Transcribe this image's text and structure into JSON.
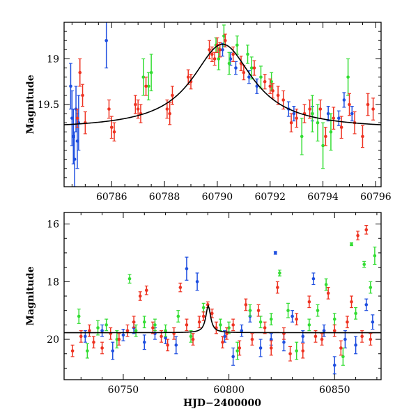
{
  "chart_data": [
    {
      "type": "scatter",
      "title": "",
      "xlabel": "",
      "ylabel": "Magnitude",
      "xlim": [
        60784.2,
        60796.2
      ],
      "ylim": [
        20.4,
        18.6
      ],
      "y_inverted": true,
      "grid": false,
      "x_ticks": [
        60786,
        60788,
        60790,
        60792,
        60794,
        60796
      ],
      "x_tick_labels": [
        "60786",
        "60788",
        "60790",
        "60792",
        "60794",
        "60796"
      ],
      "y_ticks": [
        19,
        19.5
      ],
      "y_tick_labels": [
        "19",
        "19.5"
      ],
      "model_curve": {
        "color": "#000000",
        "peak_x": 60790.2,
        "peak_mag": 18.84,
        "baseline_mag": 19.77,
        "tE_days": 1.4
      },
      "series": [
        {
          "color": "#1f4fe0",
          "x": [
            60784.45,
            60784.5,
            60784.55,
            60784.6,
            60784.65,
            60784.7,
            60784.75,
            60785.8,
            60790.2,
            60790.5,
            60790.7,
            60791.2,
            60791.5,
            60792.7,
            60792.9,
            60793.6,
            60794.2,
            60794.6,
            60794.8,
            60795.1
          ],
          "y": [
            19.3,
            19.65,
            19.85,
            20.1,
            19.55,
            19.9,
            19.7,
            18.8,
            18.9,
            19.0,
            19.1,
            19.2,
            19.3,
            19.55,
            19.6,
            19.6,
            19.6,
            19.65,
            19.45,
            19.6
          ],
          "err": [
            0.25,
            0.3,
            0.3,
            0.3,
            0.25,
            0.3,
            0.3,
            0.3,
            0.07,
            0.07,
            0.07,
            0.07,
            0.08,
            0.08,
            0.08,
            0.08,
            0.08,
            0.08,
            0.08,
            0.08
          ]
        },
        {
          "color": "#33dd33",
          "x": [
            60787.2,
            60787.4,
            60787.5,
            60789.95,
            60790.05,
            60790.25,
            60790.45,
            60790.75,
            60791.15,
            60791.3,
            60791.65,
            60792.05,
            60793.2,
            60793.6,
            60793.8,
            60794.0,
            60794.3,
            60794.95
          ],
          "y": [
            19.2,
            19.3,
            19.15,
            18.85,
            19.0,
            18.75,
            19.05,
            18.85,
            18.95,
            19.1,
            19.2,
            19.25,
            19.85,
            19.6,
            19.7,
            19.95,
            19.8,
            19.2
          ],
          "err": [
            0.2,
            0.15,
            0.2,
            0.08,
            0.12,
            0.12,
            0.12,
            0.1,
            0.1,
            0.12,
            0.12,
            0.1,
            0.2,
            0.2,
            0.2,
            0.25,
            0.2,
            0.2
          ]
        },
        {
          "color": "#ee3322",
          "x": [
            60784.7,
            60784.8,
            60784.9,
            60785.0,
            60785.9,
            60786.0,
            60786.1,
            60786.9,
            60787.0,
            60787.1,
            60787.3,
            60788.1,
            60788.2,
            60788.3,
            60788.9,
            60789.0,
            60789.7,
            60789.8,
            60789.9,
            60790.0,
            60790.1,
            60790.3,
            60790.6,
            60790.9,
            60791.0,
            60791.4,
            60791.8,
            60792.0,
            60792.1,
            60792.3,
            60792.5,
            60792.8,
            60793.0,
            60793.3,
            60793.5,
            60793.9,
            60794.1,
            60794.4,
            60794.7,
            60795.0,
            60795.2,
            60795.5,
            60795.7,
            60795.9
          ],
          "y": [
            19.65,
            19.15,
            19.4,
            19.7,
            19.55,
            19.75,
            19.8,
            19.5,
            19.55,
            19.6,
            19.3,
            19.55,
            19.6,
            19.4,
            19.2,
            19.25,
            18.9,
            18.95,
            19.0,
            18.85,
            18.9,
            18.8,
            18.95,
            19.05,
            19.15,
            19.1,
            19.25,
            19.3,
            19.35,
            19.4,
            19.45,
            19.7,
            19.65,
            19.6,
            19.55,
            19.55,
            19.85,
            19.65,
            19.75,
            19.5,
            19.7,
            19.85,
            19.5,
            19.55
          ],
          "err": [
            0.1,
            0.15,
            0.12,
            0.12,
            0.1,
            0.12,
            0.1,
            0.1,
            0.1,
            0.1,
            0.1,
            0.1,
            0.12,
            0.1,
            0.08,
            0.08,
            0.1,
            0.08,
            0.07,
            0.08,
            0.08,
            0.07,
            0.08,
            0.08,
            0.08,
            0.08,
            0.08,
            0.08,
            0.08,
            0.1,
            0.1,
            0.1,
            0.1,
            0.1,
            0.1,
            0.1,
            0.1,
            0.12,
            0.12,
            0.12,
            0.12,
            0.12,
            0.12,
            0.12
          ]
        }
      ]
    },
    {
      "type": "scatter",
      "title": "",
      "xlabel": "HJD−2400000",
      "ylabel": "Magnitude",
      "xlim": [
        60722,
        60872
      ],
      "ylim": [
        21.4,
        15.6
      ],
      "y_inverted": true,
      "grid": false,
      "x_ticks": [
        60750,
        60800,
        60850
      ],
      "x_tick_labels": [
        "60750",
        "60800",
        "60850"
      ],
      "y_ticks": [
        16,
        18,
        20
      ],
      "y_tick_labels": [
        "16",
        "18",
        "20"
      ],
      "model_curve": {
        "color": "#000000",
        "peak_x": 60790.2,
        "peak_mag": 18.84,
        "baseline_mag": 19.77,
        "tE_days": 1.4
      },
      "series": [
        {
          "color": "#1f4fe0",
          "x": [
            60732,
            60740,
            60745,
            60750,
            60755,
            60760,
            60765,
            60770,
            60775,
            60780,
            60785,
            60798,
            60802,
            60806,
            60810,
            60815,
            60820,
            60822,
            60826,
            60830,
            60835,
            60840,
            60845,
            60850,
            60855,
            60860,
            60865,
            60868
          ],
          "y": [
            19.9,
            19.7,
            20.4,
            19.85,
            19.6,
            20.1,
            19.8,
            19.95,
            20.2,
            17.55,
            18.0,
            19.9,
            20.6,
            19.7,
            19.2,
            20.3,
            20.0,
            17.0,
            20.1,
            19.2,
            19.9,
            17.9,
            19.7,
            20.9,
            20.0,
            20.2,
            18.8,
            19.4
          ],
          "err": [
            0.2,
            0.2,
            0.3,
            0.2,
            0.2,
            0.25,
            0.2,
            0.2,
            0.3,
            0.4,
            0.3,
            0.2,
            0.3,
            0.2,
            0.2,
            0.3,
            0.2,
            0.05,
            0.3,
            0.2,
            0.2,
            0.2,
            0.2,
            0.3,
            0.3,
            0.3,
            0.2,
            0.25
          ]
        },
        {
          "color": "#33dd33",
          "x": [
            60729,
            60733,
            60738,
            60742,
            60747,
            60753,
            60756,
            60760,
            60765,
            60770,
            60776,
            60782,
            60788,
            60796,
            60800,
            60804,
            60810,
            60815,
            60820,
            60824,
            60828,
            60832,
            60838,
            60842,
            60846,
            60850,
            60854,
            60858,
            60860,
            60864,
            60867,
            60869
          ],
          "y": [
            19.2,
            20.4,
            19.6,
            19.5,
            20.0,
            17.9,
            19.7,
            19.4,
            19.5,
            19.7,
            19.2,
            19.9,
            18.9,
            19.5,
            19.6,
            20.4,
            19.0,
            19.4,
            19.3,
            17.7,
            19.0,
            20.4,
            19.5,
            19.0,
            18.1,
            19.3,
            20.6,
            16.7,
            19.1,
            17.4,
            18.2,
            17.1
          ],
          "err": [
            0.25,
            0.25,
            0.25,
            0.2,
            0.3,
            0.15,
            0.2,
            0.2,
            0.2,
            0.2,
            0.2,
            0.2,
            0.15,
            0.2,
            0.2,
            0.3,
            0.2,
            0.2,
            0.2,
            0.1,
            0.25,
            0.3,
            0.2,
            0.2,
            0.2,
            0.2,
            0.3,
            0.05,
            0.2,
            0.1,
            0.2,
            0.3
          ]
        },
        {
          "color": "#ee3322",
          "x": [
            60726,
            60730,
            60734,
            60736,
            60740,
            60744,
            60748,
            60752,
            60755,
            60758,
            60761,
            60764,
            60768,
            60771,
            60774,
            60777,
            60780,
            60783,
            60786,
            60788,
            60790,
            60792,
            60794,
            60797,
            60799,
            60802,
            60805,
            60808,
            60811,
            60814,
            60817,
            60820,
            60823,
            60826,
            60829,
            60832,
            60835,
            60838,
            60841,
            60844,
            60847,
            60850,
            60853,
            60856,
            60858,
            60861,
            60863,
            60865,
            60867
          ],
          "y": [
            20.4,
            19.9,
            19.7,
            20.1,
            20.3,
            19.8,
            20.0,
            19.7,
            19.4,
            18.5,
            18.3,
            19.6,
            19.9,
            20.2,
            19.8,
            18.2,
            19.5,
            20.0,
            19.4,
            19.2,
            18.8,
            19.1,
            19.6,
            20.1,
            19.8,
            19.5,
            20.3,
            18.8,
            20.0,
            19.0,
            19.6,
            20.3,
            18.2,
            19.8,
            20.5,
            19.3,
            20.4,
            18.7,
            19.9,
            20.0,
            18.4,
            19.7,
            20.3,
            19.4,
            18.7,
            16.4,
            19.9,
            16.2,
            20.0
          ],
          "err": [
            0.2,
            0.2,
            0.2,
            0.2,
            0.2,
            0.2,
            0.2,
            0.2,
            0.2,
            0.15,
            0.15,
            0.2,
            0.2,
            0.2,
            0.2,
            0.15,
            0.2,
            0.2,
            0.2,
            0.15,
            0.1,
            0.15,
            0.2,
            0.2,
            0.2,
            0.2,
            0.25,
            0.2,
            0.2,
            0.2,
            0.2,
            0.25,
            0.2,
            0.2,
            0.25,
            0.2,
            0.25,
            0.2,
            0.2,
            0.2,
            0.2,
            0.2,
            0.25,
            0.2,
            0.2,
            0.15,
            0.2,
            0.15,
            0.2
          ]
        }
      ]
    }
  ]
}
